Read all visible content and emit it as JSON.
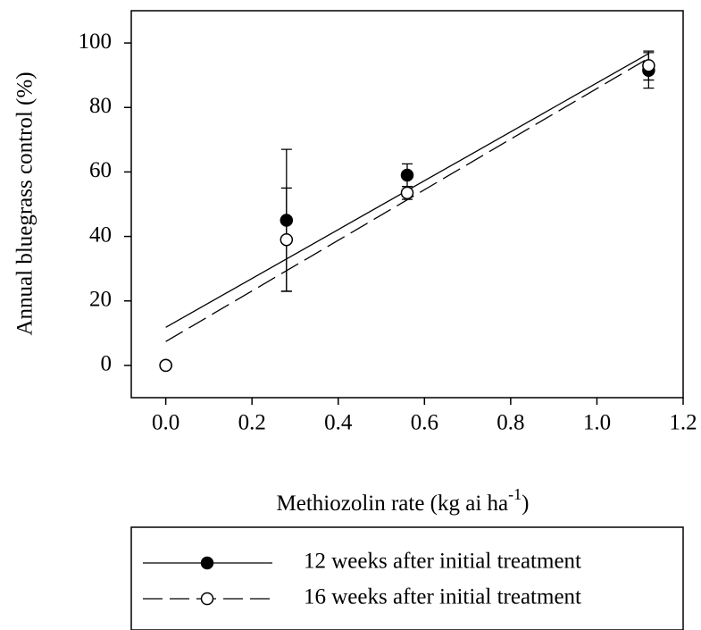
{
  "chart_data": {
    "type": "scatter",
    "ylabel": "Annual bluegrass control (%)",
    "xlabel": {
      "text": "Methiozolin rate (kg ai ha",
      "superscript": "-1",
      "suffix": ")"
    },
    "x": [
      0,
      0.28,
      0.56,
      1.12
    ],
    "xlim": [
      -0.08,
      1.2
    ],
    "xticks": [
      {
        "value": 0,
        "label": "0.0"
      },
      0.2,
      0.4,
      0.6,
      0.8,
      {
        "value": 1,
        "label": "1.0"
      },
      1.2
    ],
    "ylim": [
      -10,
      110
    ],
    "yticks": [
      0,
      20,
      40,
      60,
      80,
      100
    ],
    "series": [
      {
        "name": "12 weeks after initial treatment",
        "color": "#000000",
        "marker": "filled",
        "line": "solid",
        "values": [
          0,
          45,
          59,
          91.5
        ],
        "errors": [
          null,
          22,
          3.5,
          5.5
        ],
        "fit_x": [
          0,
          1.12
        ],
        "fit_values": [
          11.8,
          96.7
        ]
      },
      {
        "name": "16 weeks after initial treatment",
        "color": "#000000",
        "marker": "open",
        "line": "dashed",
        "values": [
          0,
          39,
          53.5,
          93
        ],
        "errors": [
          null,
          16,
          2,
          4.5
        ],
        "fit_x": [
          0,
          1.12
        ],
        "fit_values": [
          7.4,
          95.3
        ]
      }
    ]
  }
}
